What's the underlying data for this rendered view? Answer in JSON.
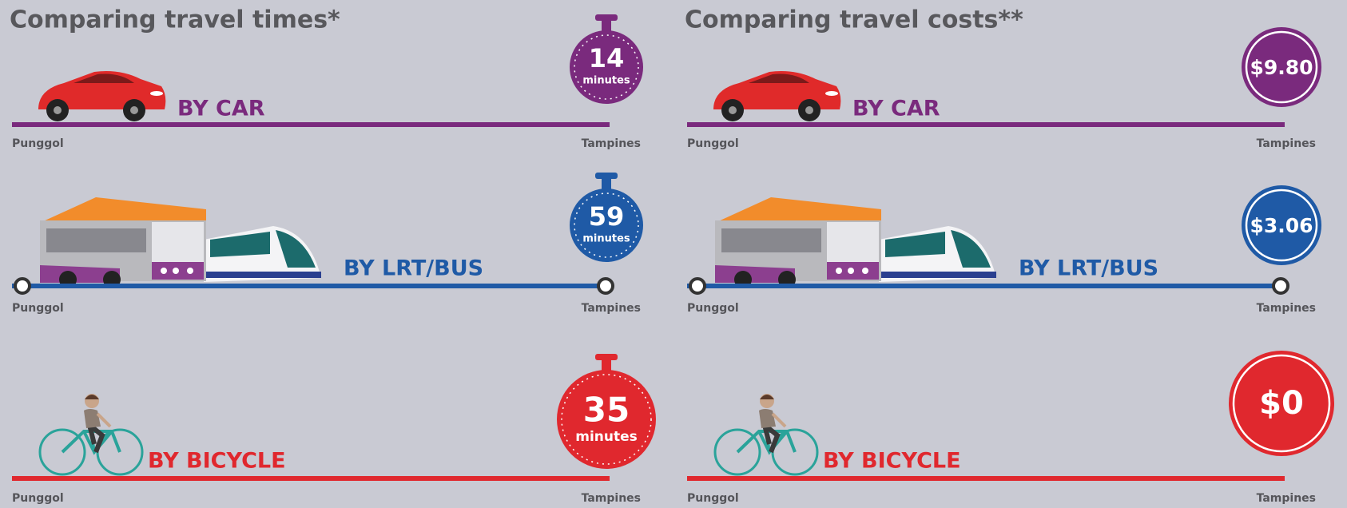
{
  "panels": [
    {
      "title": "Comparing travel times*",
      "rows": [
        {
          "mode": "BY CAR",
          "badge": "14",
          "unit": "minutes",
          "from": "Punggol",
          "to": "Tampines"
        },
        {
          "mode": "BY LRT/BUS",
          "badge": "59",
          "unit": "minutes",
          "from": "Punggol",
          "to": "Tampines"
        },
        {
          "mode": "BY BICYCLE",
          "badge": "35",
          "unit": "minutes",
          "from": "Punggol",
          "to": "Tampines"
        }
      ]
    },
    {
      "title": "Comparing travel costs**",
      "rows": [
        {
          "mode": "BY CAR",
          "badge": "$9.80",
          "from": "Punggol",
          "to": "Tampines"
        },
        {
          "mode": "BY LRT/BUS",
          "badge": "$3.06",
          "from": "Punggol",
          "to": "Tampines"
        },
        {
          "mode": "BY BICYCLE",
          "badge": "$0",
          "from": "Punggol",
          "to": "Tampines"
        }
      ]
    }
  ]
}
